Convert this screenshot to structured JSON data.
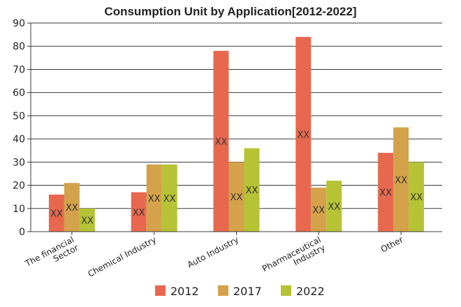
{
  "chart_data": {
    "type": "bar",
    "title": "Consumption Unit by  Application[2012-2022]",
    "xlabel": "",
    "ylabel": "",
    "ylim": [
      0,
      90
    ],
    "yticks": [
      "0",
      "10",
      "20",
      "30",
      "40",
      "50",
      "60",
      "70",
      "80",
      "90"
    ],
    "grid": true,
    "legend_position": "bottom",
    "categories": [
      [
        "The financial",
        "Sector"
      ],
      [
        "Chemical Industry"
      ],
      [
        "Auto Industry"
      ],
      [
        "Pharmaceutical",
        "Industry"
      ],
      [
        "Other"
      ]
    ],
    "series": [
      {
        "name": "2012",
        "color": "#e8684f",
        "values": [
          16,
          17,
          78,
          84,
          34
        ]
      },
      {
        "name": "2017",
        "color": "#d4a24a",
        "values": [
          21,
          29,
          30,
          19,
          45
        ]
      },
      {
        "name": "2022",
        "color": "#b5c335",
        "values": [
          10,
          29,
          36,
          22,
          30
        ]
      }
    ],
    "data_label": "XX"
  }
}
